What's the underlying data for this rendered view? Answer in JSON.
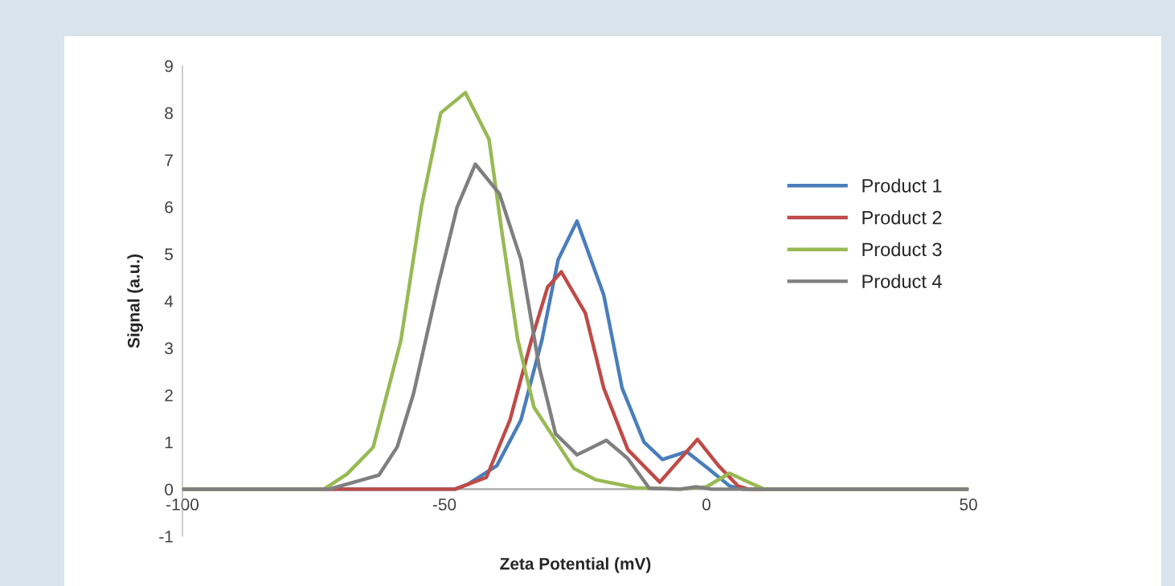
{
  "chart_data": {
    "type": "line",
    "xlabel": "Zeta Potential (mV)",
    "ylabel": "Signal (a.u.)",
    "xlim": [
      -100,
      50
    ],
    "xticks": [
      -100,
      -50,
      0,
      50
    ],
    "ylim": [
      -1,
      9
    ],
    "yticks": [
      -1,
      0,
      1,
      2,
      3,
      4,
      5,
      6,
      7,
      8,
      9
    ],
    "grid": false,
    "legend": "right",
    "marker": "none",
    "line_style": "solid",
    "series": [
      {
        "name": "Product 1",
        "color": "#4a7ebb",
        "x": [
          -100,
          -48,
          -45.6,
          -40,
          -35.4,
          -31.4,
          -28.3,
          -24.7,
          -19.6,
          -16.1,
          -11.9,
          -8.4,
          -3.8,
          0.3,
          4.4,
          7,
          50
        ],
        "values": [
          0,
          0,
          0.1,
          0.5,
          1.47,
          3.17,
          4.88,
          5.7,
          4.13,
          2.15,
          1.0,
          0.63,
          0.8,
          0.44,
          0.07,
          0,
          0
        ]
      },
      {
        "name": "Product 2",
        "color": "#be4b48",
        "x": [
          -100,
          -48,
          -42,
          -37.5,
          -33.4,
          -30.3,
          -27.7,
          -23.1,
          -19.6,
          -15,
          -8.9,
          -1.7,
          2.3,
          6,
          8,
          50
        ],
        "values": [
          0,
          0,
          0.25,
          1.47,
          3.17,
          4.3,
          4.62,
          3.74,
          2.15,
          0.84,
          0.15,
          1.06,
          0.5,
          0.07,
          0,
          0
        ]
      },
      {
        "name": "Product 3",
        "color": "#98b954",
        "x": [
          -100,
          -73,
          -68.6,
          -63.6,
          -58.3,
          -54.4,
          -50.7,
          -46,
          -41.5,
          -39,
          -36,
          -32.9,
          -25.3,
          -21.1,
          -13.5,
          -5,
          0,
          4.4,
          8,
          11,
          50
        ],
        "values": [
          0,
          0,
          0.32,
          0.89,
          3.17,
          6.0,
          8.0,
          8.43,
          7.44,
          5.44,
          3.17,
          1.74,
          0.44,
          0.2,
          0.03,
          0,
          0.05,
          0.34,
          0.15,
          0,
          0
        ]
      },
      {
        "name": "Product 4",
        "color": "#7f7f7f",
        "x": [
          -100,
          -72,
          -62.5,
          -59,
          -55.9,
          -51.3,
          -47.6,
          -44.1,
          -39.5,
          -35.4,
          -31.9,
          -28.8,
          -24.7,
          -19.1,
          -15,
          -10.9,
          -5,
          -2,
          1,
          50
        ],
        "values": [
          0,
          0,
          0.3,
          0.9,
          2.03,
          4.3,
          5.99,
          6.91,
          6.28,
          4.88,
          2.59,
          1.18,
          0.73,
          1.04,
          0.65,
          0.02,
          0,
          0.05,
          0,
          0
        ]
      }
    ]
  }
}
